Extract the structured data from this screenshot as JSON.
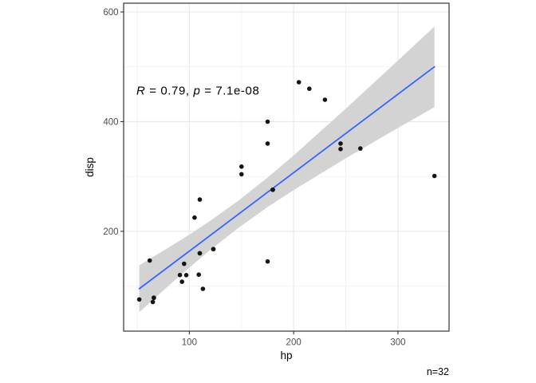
{
  "figure": {
    "background": "#ffffff"
  },
  "chart_data": {
    "type": "scatter",
    "title": "",
    "xlabel": "hp",
    "ylabel": "disp",
    "footnote": "n=32",
    "annotation": {
      "full_text": "R = 0.79, p = 7.1e-08",
      "r_symbol": "R",
      "r_rest": " = 0.79, ",
      "p_symbol": "p",
      "p_rest": " = 7.1e-08"
    },
    "x_ticks": [
      100,
      200,
      300
    ],
    "y_ticks": [
      200,
      400,
      600
    ],
    "x_minor_ticks": [
      50,
      150,
      250
    ],
    "y_minor_ticks": [
      100,
      300,
      500
    ],
    "x_domain": [
      37,
      349
    ],
    "y_domain": [
      18,
      616
    ],
    "grid": "on",
    "legend": "none",
    "points_hp_disp": [
      [
        110,
        160
      ],
      [
        110,
        160
      ],
      [
        93,
        108
      ],
      [
        110,
        258
      ],
      [
        175,
        360
      ],
      [
        105,
        225
      ],
      [
        245,
        360
      ],
      [
        62,
        146.7
      ],
      [
        95,
        140.8
      ],
      [
        123,
        167.6
      ],
      [
        123,
        167.6
      ],
      [
        180,
        275.8
      ],
      [
        180,
        275.8
      ],
      [
        180,
        275.8
      ],
      [
        205,
        472
      ],
      [
        215,
        460
      ],
      [
        230,
        440
      ],
      [
        66,
        78.7
      ],
      [
        52,
        75.7
      ],
      [
        65,
        71.1
      ],
      [
        97,
        120.1
      ],
      [
        150,
        318
      ],
      [
        150,
        304
      ],
      [
        245,
        350
      ],
      [
        175,
        400
      ],
      [
        66,
        79
      ],
      [
        91,
        120.3
      ],
      [
        113,
        95.1
      ],
      [
        264,
        351
      ],
      [
        175,
        145
      ],
      [
        335,
        301
      ],
      [
        109,
        121
      ]
    ],
    "regression_line": {
      "x": [
        52,
        335
      ],
      "y": [
        95.3,
        500.1
      ]
    },
    "conf_band": [
      [
        52,
        52.6,
        138.0
      ],
      [
        80,
        100.6,
        170.2
      ],
      [
        100,
        133.8,
        194.1
      ],
      [
        120,
        166.0,
        219.2
      ],
      [
        146.7,
        205.9,
        255.5
      ],
      [
        175,
        244.3,
        298.1
      ],
      [
        200,
        275.3,
        338.5
      ],
      [
        250,
        333.1,
        423.7
      ],
      [
        300,
        388.4,
        511.4
      ],
      [
        335,
        426.6,
        573.4
      ]
    ],
    "colors": {
      "line": "#3366FF",
      "band": "#D3D3D3",
      "point": "#151515",
      "grid_major": "#E8E8E8",
      "grid_minor": "#F1F1F1",
      "panel_border": "#333333",
      "tick_mark": "#333333",
      "tick_label": "#4D4D4D",
      "text": "#000000"
    }
  }
}
